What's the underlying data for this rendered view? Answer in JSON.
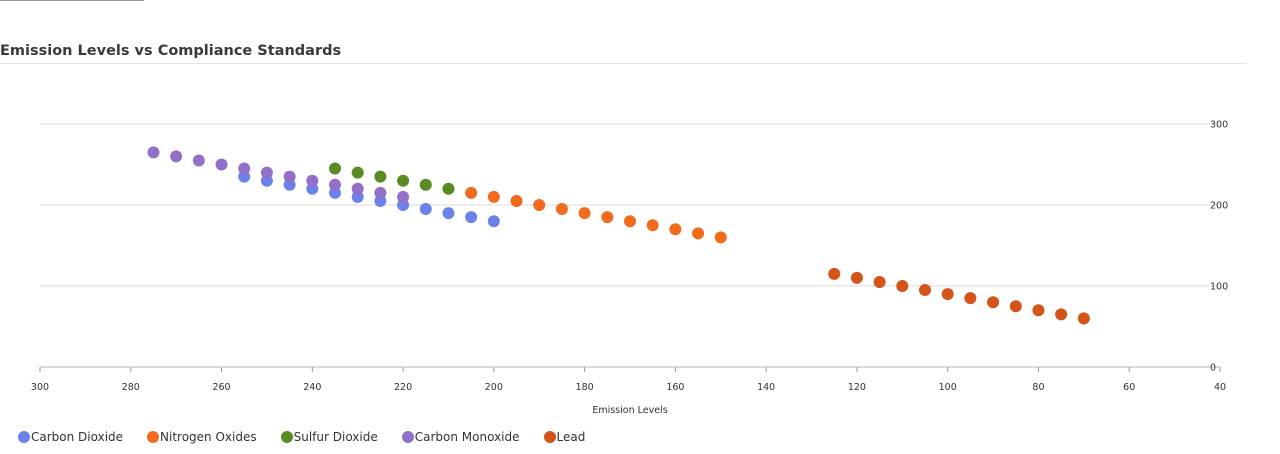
{
  "title": "Emission Levels vs Compliance Standards",
  "chart_data": {
    "type": "scatter",
    "title": "Emission Levels vs Compliance Standards",
    "xlabel": "Emission Levels",
    "ylabel": "",
    "xlim": [
      300,
      40
    ],
    "x_reversed": true,
    "ylim": [
      0,
      300
    ],
    "x_ticks": [
      300,
      280,
      260,
      240,
      220,
      200,
      180,
      160,
      140,
      120,
      100,
      80,
      60,
      40
    ],
    "y_ticks": [
      0,
      100,
      200,
      300
    ],
    "y_axis_position": "right",
    "grid": "horizontal",
    "legend": "bottom-left",
    "series": [
      {
        "name": "Carbon Dioxide",
        "color": "#6b82eb",
        "points": [
          [
            255,
            235
          ],
          [
            250,
            230
          ],
          [
            245,
            225
          ],
          [
            240,
            220
          ],
          [
            235,
            215
          ],
          [
            230,
            210
          ],
          [
            225,
            205
          ],
          [
            220,
            200
          ],
          [
            215,
            195
          ],
          [
            210,
            190
          ],
          [
            205,
            185
          ],
          [
            200,
            180
          ]
        ]
      },
      {
        "name": "Nitrogen Oxides",
        "color": "#f26b1d",
        "points": [
          [
            205,
            215
          ],
          [
            200,
            210
          ],
          [
            195,
            205
          ],
          [
            190,
            200
          ],
          [
            185,
            195
          ],
          [
            180,
            190
          ],
          [
            175,
            185
          ],
          [
            170,
            180
          ],
          [
            165,
            175
          ],
          [
            160,
            170
          ],
          [
            155,
            165
          ],
          [
            150,
            160
          ]
        ]
      },
      {
        "name": "Sulfur Dioxide",
        "color": "#5a8a22",
        "points": [
          [
            235,
            245
          ],
          [
            230,
            240
          ],
          [
            225,
            235
          ],
          [
            220,
            230
          ],
          [
            215,
            225
          ],
          [
            210,
            220
          ]
        ]
      },
      {
        "name": "Carbon Monoxide",
        "color": "#9370c8",
        "points": [
          [
            275,
            265
          ],
          [
            270,
            260
          ],
          [
            265,
            255
          ],
          [
            260,
            250
          ],
          [
            255,
            245
          ],
          [
            250,
            240
          ],
          [
            245,
            235
          ],
          [
            240,
            230
          ],
          [
            235,
            225
          ],
          [
            230,
            220
          ],
          [
            225,
            215
          ],
          [
            220,
            210
          ]
        ]
      },
      {
        "name": "Lead",
        "color": "#d4541a",
        "points": [
          [
            125,
            115
          ],
          [
            120,
            110
          ],
          [
            115,
            105
          ],
          [
            110,
            100
          ],
          [
            105,
            95
          ],
          [
            100,
            90
          ],
          [
            95,
            85
          ],
          [
            90,
            80
          ],
          [
            85,
            75
          ],
          [
            80,
            70
          ],
          [
            75,
            65
          ],
          [
            70,
            60
          ]
        ]
      }
    ]
  }
}
